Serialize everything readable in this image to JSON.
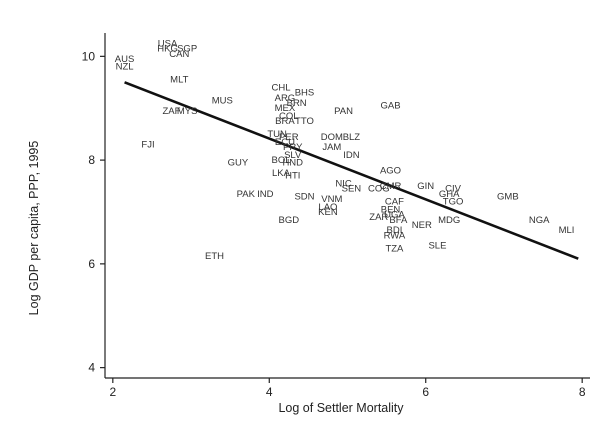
{
  "chart_data": {
    "type": "scatter",
    "title": "",
    "xlabel": "Log of Settler Mortality",
    "ylabel": "Log GDP per capita, PPP, 1995",
    "xlim": [
      1.9,
      8.1
    ],
    "ylim": [
      3.8,
      10.45
    ],
    "xticks": [
      2,
      4,
      6,
      8
    ],
    "yticks": [
      4,
      6,
      8,
      10
    ],
    "grid": false,
    "legend": "none",
    "fit_line": {
      "x": [
        2.15,
        7.95
      ],
      "y": [
        9.5,
        6.1
      ]
    },
    "points": [
      {
        "label": "USA",
        "x": 2.7,
        "y": 10.25
      },
      {
        "label": "HKG",
        "x": 2.7,
        "y": 10.15
      },
      {
        "label": "SGP",
        "x": 2.95,
        "y": 10.15
      },
      {
        "label": "CAN",
        "x": 2.85,
        "y": 10.05
      },
      {
        "label": "AUS",
        "x": 2.15,
        "y": 9.95
      },
      {
        "label": "NZL",
        "x": 2.15,
        "y": 9.8
      },
      {
        "label": "MLT",
        "x": 2.85,
        "y": 9.55
      },
      {
        "label": "MUS",
        "x": 3.4,
        "y": 9.15
      },
      {
        "label": "ZAF",
        "x": 2.75,
        "y": 8.95
      },
      {
        "label": "MYS",
        "x": 2.95,
        "y": 8.95
      },
      {
        "label": "FJI",
        "x": 2.45,
        "y": 8.3
      },
      {
        "label": "GUY",
        "x": 3.6,
        "y": 7.95
      },
      {
        "label": "PAK",
        "x": 3.7,
        "y": 7.35
      },
      {
        "label": "IND",
        "x": 3.95,
        "y": 7.35
      },
      {
        "label": "ETH",
        "x": 3.3,
        "y": 6.15
      },
      {
        "label": "BGD",
        "x": 4.25,
        "y": 6.85
      },
      {
        "label": "SDN",
        "x": 4.45,
        "y": 7.3
      },
      {
        "label": "CHL",
        "x": 4.15,
        "y": 9.4
      },
      {
        "label": "BHS",
        "x": 4.45,
        "y": 9.3
      },
      {
        "label": "ARG",
        "x": 4.2,
        "y": 9.2
      },
      {
        "label": "BRN",
        "x": 4.35,
        "y": 9.1
      },
      {
        "label": "MEX",
        "x": 4.2,
        "y": 9.0
      },
      {
        "label": "COL",
        "x": 4.25,
        "y": 8.85
      },
      {
        "label": "BRA",
        "x": 4.2,
        "y": 8.75
      },
      {
        "label": "TTO",
        "x": 4.45,
        "y": 8.75
      },
      {
        "label": "TUN",
        "x": 4.1,
        "y": 8.5
      },
      {
        "label": "PER",
        "x": 4.25,
        "y": 8.45
      },
      {
        "label": "ECU",
        "x": 4.2,
        "y": 8.35
      },
      {
        "label": "PRY",
        "x": 4.3,
        "y": 8.25
      },
      {
        "label": "SLV",
        "x": 4.3,
        "y": 8.1
      },
      {
        "label": "BOL",
        "x": 4.15,
        "y": 8.0
      },
      {
        "label": "HND",
        "x": 4.3,
        "y": 7.95
      },
      {
        "label": "LKA",
        "x": 4.15,
        "y": 7.75
      },
      {
        "label": "HTI",
        "x": 4.3,
        "y": 7.7
      },
      {
        "label": "PAN",
        "x": 4.95,
        "y": 8.95
      },
      {
        "label": "GAB",
        "x": 5.55,
        "y": 9.05
      },
      {
        "label": "DOM",
        "x": 4.8,
        "y": 8.45
      },
      {
        "label": "BLZ",
        "x": 5.05,
        "y": 8.45
      },
      {
        "label": "JAM",
        "x": 4.8,
        "y": 8.25
      },
      {
        "label": "IDN",
        "x": 5.05,
        "y": 8.1
      },
      {
        "label": "AGO",
        "x": 5.55,
        "y": 7.8
      },
      {
        "label": "NIC",
        "x": 4.95,
        "y": 7.55
      },
      {
        "label": "SEN",
        "x": 5.05,
        "y": 7.45
      },
      {
        "label": "COG",
        "x": 5.4,
        "y": 7.45
      },
      {
        "label": "CMR",
        "x": 5.55,
        "y": 7.5
      },
      {
        "label": "GIN",
        "x": 6.0,
        "y": 7.5
      },
      {
        "label": "CIV",
        "x": 6.35,
        "y": 7.45
      },
      {
        "label": "GHA",
        "x": 6.3,
        "y": 7.35
      },
      {
        "label": "TGO",
        "x": 6.35,
        "y": 7.2
      },
      {
        "label": "GMB",
        "x": 7.05,
        "y": 7.3
      },
      {
        "label": "NGA",
        "x": 7.45,
        "y": 6.85
      },
      {
        "label": "MLI",
        "x": 7.8,
        "y": 6.65
      },
      {
        "label": "VNM",
        "x": 4.8,
        "y": 7.25
      },
      {
        "label": "LAO",
        "x": 4.75,
        "y": 7.1
      },
      {
        "label": "KEN",
        "x": 4.75,
        "y": 7.0
      },
      {
        "label": "CAF",
        "x": 5.6,
        "y": 7.2
      },
      {
        "label": "BEN",
        "x": 5.55,
        "y": 7.05
      },
      {
        "label": "UGA",
        "x": 5.6,
        "y": 6.95
      },
      {
        "label": "ZAR",
        "x": 5.4,
        "y": 6.9
      },
      {
        "label": "BFA",
        "x": 5.65,
        "y": 6.85
      },
      {
        "label": "NER",
        "x": 5.95,
        "y": 6.75
      },
      {
        "label": "MDG",
        "x": 6.3,
        "y": 6.85
      },
      {
        "label": "RWA",
        "x": 5.6,
        "y": 6.55
      },
      {
        "label": "BDI",
        "x": 5.6,
        "y": 6.65
      },
      {
        "label": "TZA",
        "x": 5.6,
        "y": 6.3
      },
      {
        "label": "SLE",
        "x": 6.15,
        "y": 6.35
      }
    ]
  }
}
